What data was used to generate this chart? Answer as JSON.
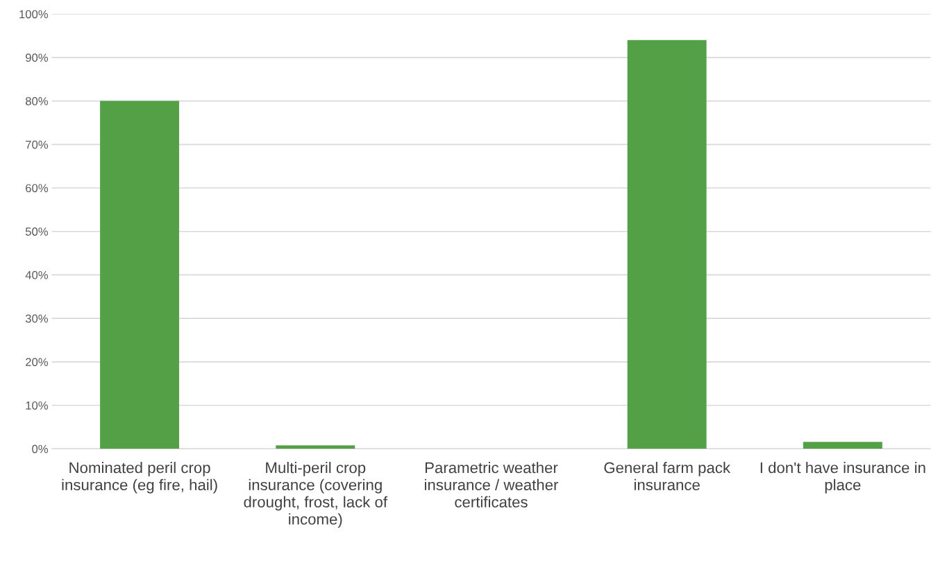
{
  "chart_data": {
    "type": "bar",
    "categories": [
      "Nominated peril crop insurance (eg fire, hail)",
      "Multi-peril crop insurance (covering drought, frost, lack of income)",
      "Parametric weather insurance / weather certificates",
      "General farm pack insurance",
      "I don't have insurance in place"
    ],
    "values": [
      80,
      0.8,
      0,
      94,
      1.6
    ],
    "color": "#53a046",
    "ylim": [
      0,
      100
    ],
    "yticks": [
      {
        "value": 0,
        "label": "0%"
      },
      {
        "value": 10,
        "label": "10%"
      },
      {
        "value": 20,
        "label": "20%"
      },
      {
        "value": 30,
        "label": "30%"
      },
      {
        "value": 40,
        "label": "40%"
      },
      {
        "value": 50,
        "label": "50%"
      },
      {
        "value": 60,
        "label": "60%"
      },
      {
        "value": 70,
        "label": "70%"
      },
      {
        "value": 80,
        "label": "80%"
      },
      {
        "value": 90,
        "label": "90%"
      },
      {
        "value": 100,
        "label": "100%"
      }
    ],
    "grid": "y"
  }
}
